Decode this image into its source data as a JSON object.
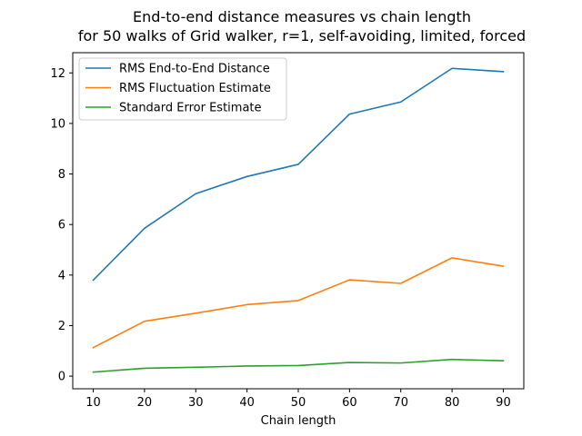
{
  "chart_data": {
    "type": "line",
    "title": "End-to-end distance measures vs chain length",
    "subtitle": "for 50 walks of Grid walker, r=1, self-avoiding, limited, forced",
    "xlabel": "Chain length",
    "ylabel": "",
    "x": [
      10,
      20,
      30,
      40,
      50,
      60,
      70,
      80,
      90
    ],
    "xlim": [
      6,
      94
    ],
    "ylim": [
      -0.5,
      12.8
    ],
    "xticks": [
      10,
      20,
      30,
      40,
      50,
      60,
      70,
      80,
      90
    ],
    "yticks": [
      0,
      2,
      4,
      6,
      8,
      10,
      12
    ],
    "grid": false,
    "legend_position": "top-left",
    "series": [
      {
        "name": "RMS End-to-End Distance",
        "color": "#1f77b4",
        "values": [
          3.8,
          5.85,
          7.22,
          7.9,
          8.38,
          10.37,
          10.85,
          12.18,
          12.05
        ]
      },
      {
        "name": "RMS Fluctuation Estimate",
        "color": "#ff7f0e",
        "values": [
          1.13,
          2.17,
          2.49,
          2.83,
          2.99,
          3.81,
          3.67,
          4.68,
          4.35
        ]
      },
      {
        "name": "Standard Error Estimate",
        "color": "#2ca02c",
        "values": [
          0.16,
          0.31,
          0.35,
          0.4,
          0.42,
          0.54,
          0.52,
          0.66,
          0.61
        ]
      }
    ]
  }
}
